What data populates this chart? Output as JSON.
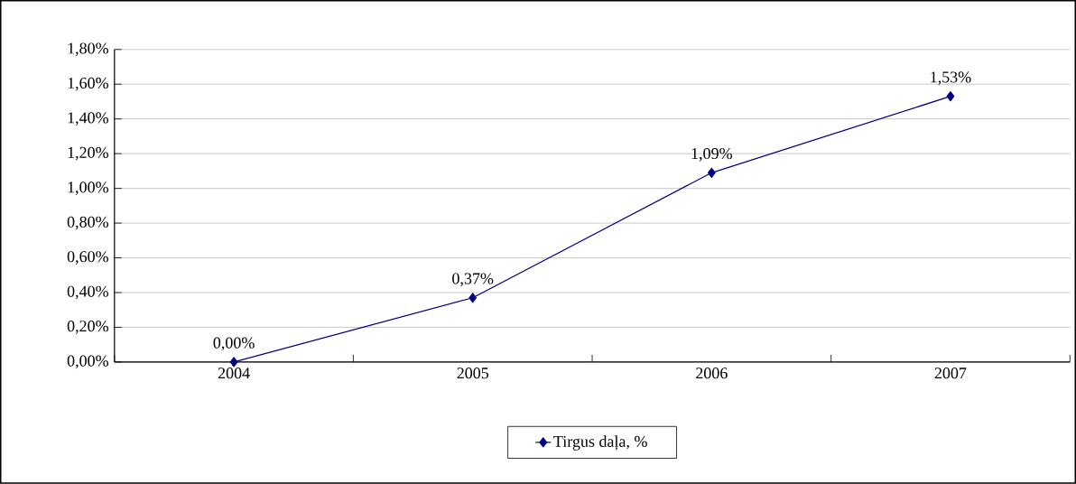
{
  "chart_data": {
    "type": "line",
    "categories": [
      "2004",
      "2005",
      "2006",
      "2007"
    ],
    "series": [
      {
        "name": "Tirgus daļa, %",
        "color": "#000080",
        "values": [
          0,
          0.37,
          1.09,
          1.53
        ],
        "value_labels": [
          "0,00%",
          "0,37%",
          "1,09%",
          "1,53%"
        ]
      }
    ],
    "ylim": [
      0,
      1.8
    ],
    "yticks": [
      {
        "value": 0,
        "label": "0,00%"
      },
      {
        "value": 0.2,
        "label": "0,20%"
      },
      {
        "value": 0.4,
        "label": "0,40%"
      },
      {
        "value": 0.6,
        "label": "0,60%"
      },
      {
        "value": 0.8,
        "label": "0,80%"
      },
      {
        "value": 1.0,
        "label": "1,00%"
      },
      {
        "value": 1.2,
        "label": "1,20%"
      },
      {
        "value": 1.4,
        "label": "1,40%"
      },
      {
        "value": 1.6,
        "label": "1,60%"
      },
      {
        "value": 1.8,
        "label": "1,80%"
      }
    ],
    "grid": "y",
    "legend": "bottom",
    "marker": "diamond",
    "line_style": "solid"
  }
}
